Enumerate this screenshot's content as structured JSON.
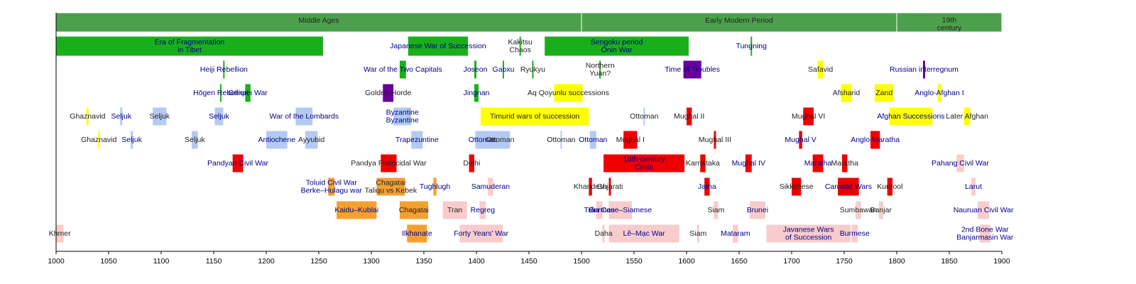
{
  "chart_data": {
    "type": "timeline",
    "xlim": [
      1000,
      1900
    ],
    "xticks": [
      1000,
      1050,
      1100,
      1150,
      1200,
      1250,
      1300,
      1350,
      1400,
      1450,
      1500,
      1550,
      1600,
      1650,
      1700,
      1750,
      1800,
      1850,
      1900
    ],
    "era_color": "#4ca04c",
    "eras": [
      {
        "label": [
          "Middle Ages"
        ],
        "start": 1000,
        "end": 1500
      },
      {
        "label": [
          "Early Modern Period"
        ],
        "start": 1500,
        "end": 1800
      },
      {
        "label": [
          "19th",
          "century"
        ],
        "start": 1800,
        "end": 1900
      }
    ],
    "rows": [
      [
        {
          "label": [
            "Era of Fragmentation",
            "in Tibet"
          ],
          "start": 1000,
          "end": 1254,
          "color": "#1aaf1a",
          "link": true
        },
        {
          "label": [
            "Japanese War of Succession"
          ],
          "start": 1335,
          "end": 1392,
          "color": "#1aaf1a",
          "link": true
        },
        {
          "label": [
            "Kakitsu",
            "Chaos"
          ],
          "start": 1441,
          "end": 1442,
          "color": "#1aaf1a",
          "link": false
        },
        {
          "label": [
            "Sengoku period",
            "Ōnin War"
          ],
          "start": 1465,
          "end": 1602,
          "color": "#1aaf1a",
          "link": true
        },
        {
          "label": [
            "Tungning"
          ],
          "start": 1661,
          "end": 1662,
          "color": "#1aaf1a",
          "link": true
        }
      ],
      [
        {
          "label": [
            "Heiji Rebellion"
          ],
          "start": 1159,
          "end": 1160,
          "color": "#1aaf1a",
          "link": true
        },
        {
          "label": [
            "War of the Two Capitals"
          ],
          "start": 1327,
          "end": 1333,
          "color": "#1aaf1a",
          "link": true
        },
        {
          "label": [
            "Joseon"
          ],
          "start": 1398,
          "end": 1400,
          "color": "#1aaf1a",
          "link": true
        },
        {
          "label": [
            "Gaoxu"
          ],
          "start": 1425,
          "end": 1426,
          "color": "#1aaf1a",
          "link": true
        },
        {
          "label": [
            "Ryukyu"
          ],
          "start": 1453,
          "end": 1454,
          "color": "#1aaf1a",
          "link": false
        },
        {
          "label": [
            "Northern",
            "Yuan?"
          ],
          "start": 1517,
          "end": 1518,
          "color": "#1aaf1a",
          "link": false
        },
        {
          "label": [
            "Time of Troubles"
          ],
          "start": 1597,
          "end": 1614,
          "color": "#660099",
          "link": true
        },
        {
          "label": [
            "Safavid"
          ],
          "start": 1725,
          "end": 1730,
          "color": "#ffff00",
          "link": false
        },
        {
          "label": [
            "Russian interregnum"
          ],
          "start": 1825,
          "end": 1827,
          "color": "#660099",
          "link": true
        }
      ],
      [
        {
          "label": [
            "Hōgen Rebellion"
          ],
          "start": 1156,
          "end": 1157,
          "color": "#1aaf1a",
          "link": true
        },
        {
          "label": [
            "Genpei War"
          ],
          "start": 1180,
          "end": 1185,
          "color": "#1aaf1a",
          "link": true
        },
        {
          "label": [
            "Golden Horde"
          ],
          "start": 1311,
          "end": 1321,
          "color": "#660099",
          "link": false
        },
        {
          "label": [
            "Jingnan"
          ],
          "start": 1398,
          "end": 1402,
          "color": "#1aaf1a",
          "link": true
        },
        {
          "label": [
            "Aq Qoyunlu successions"
          ],
          "start": 1474,
          "end": 1501,
          "color": "#ffff00",
          "link": false
        },
        {
          "label": [
            "Afsharid"
          ],
          "start": 1747,
          "end": 1757,
          "color": "#ffff00",
          "link": false
        },
        {
          "label": [
            "Zand"
          ],
          "start": 1779,
          "end": 1797,
          "color": "#ffff00",
          "link": false
        },
        {
          "label": [
            "Anglo-Afghan I"
          ],
          "start": 1839,
          "end": 1842,
          "color": "#ffff00",
          "link": true
        }
      ],
      [
        {
          "label": [
            "Ghaznavid"
          ],
          "start": 1029,
          "end": 1031,
          "color": "#ffff00",
          "link": false
        },
        {
          "label": [
            "Seljuk"
          ],
          "start": 1061,
          "end": 1063,
          "color": "#b3caf2",
          "link": true
        },
        {
          "label": [
            "Seljuk"
          ],
          "start": 1092,
          "end": 1105,
          "color": "#b3caf2",
          "link": false
        },
        {
          "label": [
            "Seljuk"
          ],
          "start": 1151,
          "end": 1159,
          "color": "#b3caf2",
          "link": true
        },
        {
          "label": [
            "War of the Lombards"
          ],
          "start": 1228,
          "end": 1244,
          "color": "#b3caf2",
          "link": true
        },
        {
          "label": [
            "Byzantine",
            "Byzantine"
          ],
          "start": 1321,
          "end": 1338,
          "color": "#b3caf2",
          "link": true
        },
        {
          "label": [
            "Timurid wars of succession"
          ],
          "start": 1404,
          "end": 1507,
          "color": "#ffff00",
          "link": false
        },
        {
          "label": [
            "Ottoman"
          ],
          "start": 1559,
          "end": 1560,
          "color": "#b3caf2",
          "link": false
        },
        {
          "label": [
            "Mughal II"
          ],
          "start": 1600,
          "end": 1605,
          "color": "#ee0000",
          "link": false
        },
        {
          "label": [
            "Mughal VI"
          ],
          "start": 1711,
          "end": 1721,
          "color": "#ee0000",
          "link": false
        },
        {
          "label": [
            "Afghan Successions"
          ],
          "start": 1793,
          "end": 1834,
          "color": "#ffff00",
          "link": true
        },
        {
          "label": [
            "Later Afghan"
          ],
          "start": 1864,
          "end": 1870,
          "color": "#ffff00",
          "link": false
        }
      ],
      [
        {
          "label": [
            "Ghaznavid"
          ],
          "start": 1040,
          "end": 1041,
          "color": "#ffff00",
          "link": false
        },
        {
          "label": [
            "Seljuk"
          ],
          "start": 1071,
          "end": 1073,
          "color": "#b3caf2",
          "link": true
        },
        {
          "label": [
            "Seljuk"
          ],
          "start": 1129,
          "end": 1135,
          "color": "#b3caf2",
          "link": false
        },
        {
          "label": [
            "Antiochene"
          ],
          "start": 1200,
          "end": 1220,
          "color": "#b3caf2",
          "link": true
        },
        {
          "label": [
            "Ayyubid"
          ],
          "start": 1237,
          "end": 1249,
          "color": "#b3caf2",
          "link": false
        },
        {
          "label": [
            "Trapezuntine"
          ],
          "start": 1338,
          "end": 1349,
          "color": "#b3caf2",
          "link": true
        },
        {
          "label": [
            "Ottoman"
          ],
          "start": 1399,
          "end": 1413,
          "color": "#b3caf2",
          "link": true
        },
        {
          "label": [
            "Ottoman"
          ],
          "start": 1413,
          "end": 1432,
          "color": "#b3caf2",
          "link": false
        },
        {
          "label": [
            "Ottoman"
          ],
          "start": 1480,
          "end": 1481,
          "color": "#b3caf2",
          "link": false
        },
        {
          "label": [
            "Ottoman"
          ],
          "start": 1508,
          "end": 1514,
          "color": "#b3caf2",
          "link": true
        },
        {
          "label": [
            "Mughal I"
          ],
          "start": 1540,
          "end": 1553,
          "color": "#ee0000",
          "link": false
        },
        {
          "label": [
            "Mughal III"
          ],
          "start": 1626,
          "end": 1628,
          "color": "#ee0000",
          "link": false
        },
        {
          "label": [
            "Mughal V"
          ],
          "start": 1707,
          "end": 1710,
          "color": "#ee0000",
          "link": true
        },
        {
          "label": [
            "Anglo-Maratha"
          ],
          "start": 1775,
          "end": 1784,
          "color": "#ee0000",
          "link": true
        }
      ],
      [
        {
          "label": [
            "Pandyan Civil War"
          ],
          "start": 1168,
          "end": 1178,
          "color": "#ee0000",
          "link": true
        },
        {
          "label": [
            "Pandya Fratricidal War"
          ],
          "start": 1309,
          "end": 1324,
          "color": "#ee0000",
          "link": false
        },
        {
          "label": [
            "Delhi"
          ],
          "start": 1393,
          "end": 1398,
          "color": "#ee0000",
          "link": false
        },
        {
          "label": [
            "16th-century",
            "Crisis"
          ],
          "start": 1521,
          "end": 1598,
          "color": "#ee0000",
          "link": true
        },
        {
          "label": [
            "Karnataka"
          ],
          "start": 1613,
          "end": 1618,
          "color": "#ee0000",
          "link": false
        },
        {
          "label": [
            "Mughal IV"
          ],
          "start": 1656,
          "end": 1662,
          "color": "#ee0000",
          "link": true
        },
        {
          "label": [
            "Maratha"
          ],
          "start": 1720,
          "end": 1730,
          "color": "#ee0000",
          "link": true
        },
        {
          "label": [
            "Maratha"
          ],
          "start": 1748,
          "end": 1753,
          "color": "#ee0000",
          "link": false
        },
        {
          "label": [
            "Pahang Civil War"
          ],
          "start": 1857,
          "end": 1864,
          "color": "#f8cccc",
          "link": true
        }
      ],
      [
        {
          "label": [
            "Toluid Civil War",
            "Berke–Hulagu war"
          ],
          "start": 1259,
          "end": 1265,
          "color": "#f4a030",
          "link": true
        },
        {
          "label": [
            "Chagatai",
            "Taliqu vs Kebek"
          ],
          "start": 1305,
          "end": 1332,
          "color": "#f4a030",
          "link": false
        },
        {
          "label": [
            "Tughlugh"
          ],
          "start": 1359,
          "end": 1362,
          "color": "#f4a030",
          "link": true
        },
        {
          "label": [
            "Samuderan"
          ],
          "start": 1411,
          "end": 1416,
          "color": "#f8cccc",
          "link": true
        },
        {
          "label": [
            "Khandesh"
          ],
          "start": 1507,
          "end": 1510,
          "color": "#ee0000",
          "link": false
        },
        {
          "label": [
            "Gujarati"
          ],
          "start": 1526,
          "end": 1528,
          "color": "#ee0000",
          "link": false
        },
        {
          "label": [
            "Jatha"
          ],
          "start": 1617,
          "end": 1622,
          "color": "#ee0000",
          "link": true
        },
        {
          "label": [
            "Sikkimese"
          ],
          "start": 1700,
          "end": 1709,
          "color": "#ee0000",
          "link": false
        },
        {
          "label": [
            "Carnatic Wars"
          ],
          "start": 1744,
          "end": 1764,
          "color": "#ee0000",
          "link": true
        },
        {
          "label": [
            "Kurnool"
          ],
          "start": 1791,
          "end": 1796,
          "color": "#ee0000",
          "link": false
        },
        {
          "label": [
            "Larut"
          ],
          "start": 1871,
          "end": 1875,
          "color": "#f8cccc",
          "link": true
        }
      ],
      [
        {
          "label": [
            "Kaidu–Kublai"
          ],
          "start": 1267,
          "end": 1305,
          "color": "#f4a030",
          "link": true
        },
        {
          "label": [
            "Chagatai"
          ],
          "start": 1327,
          "end": 1354,
          "color": "#f4a030",
          "link": false
        },
        {
          "label": [
            "Tran"
          ],
          "start": 1368,
          "end": 1391,
          "color": "#f8cccc",
          "link": false
        },
        {
          "label": [
            "Regreg"
          ],
          "start": 1403,
          "end": 1409,
          "color": "#f8cccc",
          "link": true
        },
        {
          "label": [
            "Trần Cao"
          ],
          "start": 1514,
          "end": 1520,
          "color": "#f8cccc",
          "link": true
        },
        {
          "label": [
            "Burmese–Siamese"
          ],
          "start": 1526,
          "end": 1548,
          "color": "#f8cccc",
          "link": true
        },
        {
          "label": [
            "Siam"
          ],
          "start": 1626,
          "end": 1630,
          "color": "#f8cccc",
          "link": false
        },
        {
          "label": [
            "Brunei"
          ],
          "start": 1660,
          "end": 1675,
          "color": "#f8cccc",
          "link": true
        },
        {
          "label": [
            "Sumbawan"
          ],
          "start": 1761,
          "end": 1766,
          "color": "#f8cccc",
          "link": false
        },
        {
          "label": [
            "Banjar"
          ],
          "start": 1783,
          "end": 1787,
          "color": "#f8cccc",
          "link": false
        },
        {
          "label": [
            "Nauruan Civil War"
          ],
          "start": 1877,
          "end": 1888,
          "color": "#f8cccc",
          "link": true
        }
      ],
      [
        {
          "label": [
            "Khmer"
          ],
          "start": 1000,
          "end": 1007,
          "color": "#f8cccc",
          "link": false
        },
        {
          "label": [
            "Ilkhanate"
          ],
          "start": 1334,
          "end": 1353,
          "color": "#f4a030",
          "link": true
        },
        {
          "label": [
            "Forty Years' War"
          ],
          "start": 1384,
          "end": 1425,
          "color": "#f8cccc",
          "link": true
        },
        {
          "label": [
            "Daha"
          ],
          "start": 1520,
          "end": 1522,
          "color": "#f8cccc",
          "link": false
        },
        {
          "label": [
            "Lê–Mạc War"
          ],
          "start": 1526,
          "end": 1593,
          "color": "#f8cccc",
          "link": true
        },
        {
          "label": [
            "Siam"
          ],
          "start": 1610,
          "end": 1612,
          "color": "#f8cccc",
          "link": false
        },
        {
          "label": [
            "Mataram"
          ],
          "start": 1644,
          "end": 1649,
          "color": "#f8cccc",
          "link": true
        },
        {
          "label": [
            "Javanese Wars",
            "of Succession"
          ],
          "start": 1676,
          "end": 1756,
          "color": "#f8cccc",
          "link": true
        },
        {
          "label": [
            "Burmese"
          ],
          "start": 1757,
          "end": 1763,
          "color": "#f8cccc",
          "link": true
        },
        {
          "label": [
            "2nd Bone War",
            "Banjarmasin War"
          ],
          "start": 1879,
          "end": 1889,
          "color": "#f8cccc",
          "link": true
        }
      ]
    ]
  }
}
